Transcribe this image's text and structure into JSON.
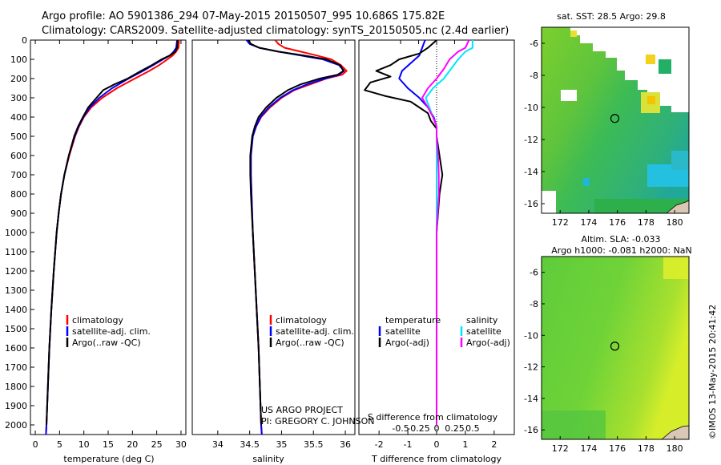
{
  "header": {
    "line1": "Argo profile: AO 5901386_294 07-May-2015 20150507_995 10.686S 175.82E",
    "line2": "Climatology: CARS2009. Satellite-adjusted climatology: synTS_20150505.nc (2.4d earlier)"
  },
  "credits": {
    "project": "US ARGO PROJECT",
    "pi": "PI: GREGORY C. JOHNSON",
    "imos": "©IMOS 13-May-2015 20:41:42"
  },
  "colors": {
    "climatology": "#ff0000",
    "satellite": "#0000ff",
    "argo": "#000000",
    "sat_salinity": "#00e5ff",
    "argo_salinity": "#ff00ff"
  },
  "chart_data": [
    {
      "type": "line",
      "id": "temperature",
      "xlabel": "temperature (deg C)",
      "xlim": [
        -1,
        31
      ],
      "ylim": [
        2050,
        0
      ],
      "xticks": [
        0,
        5,
        10,
        15,
        20,
        25,
        30
      ],
      "yticks": [
        0,
        100,
        200,
        300,
        400,
        500,
        600,
        700,
        800,
        900,
        1000,
        1100,
        1200,
        1300,
        1400,
        1500,
        1600,
        1700,
        1800,
        1900,
        2000
      ],
      "legend": [
        "climatology",
        "satellite-adj. clim.",
        "Argo(..raw -QC)"
      ],
      "series": [
        {
          "name": "climatology",
          "color": "#ff0000",
          "depth": [
            0,
            40,
            60,
            80,
            100,
            130,
            160,
            200,
            250,
            300,
            350,
            400,
            450,
            500,
            600,
            700,
            800,
            900,
            1000,
            1200,
            1400,
            1600,
            1800,
            2000,
            2050
          ],
          "values": [
            29.6,
            29.5,
            29.0,
            28.3,
            27.2,
            25.5,
            23.5,
            20.5,
            16.8,
            13.8,
            11.5,
            10.0,
            9.0,
            8.2,
            7.0,
            6.0,
            5.3,
            4.8,
            4.4,
            3.8,
            3.3,
            2.9,
            2.6,
            2.3,
            2.2
          ]
        },
        {
          "name": "satellite-adj. clim.",
          "color": "#0000ff",
          "depth": [
            0,
            40,
            60,
            80,
            100,
            130,
            160,
            200,
            250,
            300,
            350,
            400,
            450,
            500,
            600,
            700,
            800,
            900,
            1000,
            1200,
            1400,
            1600,
            1800,
            2000,
            2050
          ],
          "values": [
            29.2,
            29.0,
            28.5,
            27.7,
            26.3,
            24.3,
            22.2,
            19.2,
            15.8,
            13.2,
            11.2,
            9.9,
            8.9,
            8.1,
            6.9,
            6.0,
            5.3,
            4.8,
            4.4,
            3.8,
            3.3,
            2.9,
            2.6,
            2.3,
            2.2
          ]
        },
        {
          "name": "Argo(..raw -QC)",
          "color": "#000000",
          "depth": [
            0,
            40,
            60,
            80,
            100,
            130,
            160,
            200,
            230,
            260,
            300,
            350,
            400,
            450,
            500,
            600,
            700,
            800,
            900,
            1000,
            1200,
            1400,
            1600,
            1800,
            2000
          ],
          "values": [
            29.3,
            29.2,
            28.8,
            27.7,
            26.0,
            24.0,
            21.8,
            19.0,
            16.3,
            14.0,
            12.6,
            10.9,
            9.8,
            8.8,
            8.0,
            6.9,
            6.0,
            5.3,
            4.8,
            4.4,
            3.8,
            3.3,
            2.9,
            2.6,
            2.3
          ]
        }
      ]
    },
    {
      "type": "line",
      "id": "salinity",
      "xlabel": "salinity",
      "xlim": [
        33.6,
        36.15
      ],
      "ylim": [
        2050,
        0
      ],
      "xticks": [
        34,
        34.5,
        35,
        35.5,
        36
      ],
      "xticklabels": [
        "34",
        "34.5",
        "35",
        "35.5",
        "36"
      ],
      "legend": [
        "climatology",
        "satellite-adj. clim.",
        "Argo(..raw -QC)"
      ],
      "series": [
        {
          "name": "climatology",
          "color": "#ff0000",
          "depth": [
            0,
            20,
            40,
            60,
            80,
            100,
            130,
            160,
            180,
            200,
            230,
            260,
            300,
            350,
            400,
            450,
            500,
            600,
            700,
            800,
            1000,
            1200,
            1400,
            1600,
            1800,
            2000,
            2050
          ],
          "values": [
            34.9,
            34.95,
            35.05,
            35.3,
            35.55,
            35.78,
            35.93,
            36.02,
            35.95,
            35.7,
            35.45,
            35.2,
            35.0,
            34.82,
            34.68,
            34.6,
            34.55,
            34.52,
            34.52,
            34.53,
            34.55,
            34.58,
            34.61,
            34.64,
            34.66,
            34.68,
            34.69
          ]
        },
        {
          "name": "satellite-adj. clim.",
          "color": "#0000ff",
          "depth": [
            0,
            20,
            40,
            60,
            80,
            100,
            130,
            160,
            180,
            200,
            230,
            260,
            300,
            350,
            400,
            450,
            500,
            600,
            700,
            800,
            1000,
            1200,
            1400,
            1600,
            1800,
            2000,
            2050
          ],
          "values": [
            34.45,
            34.5,
            34.65,
            34.95,
            35.3,
            35.65,
            35.9,
            35.98,
            35.9,
            35.68,
            35.4,
            35.18,
            34.98,
            34.8,
            34.67,
            34.6,
            34.55,
            34.52,
            34.52,
            34.53,
            34.55,
            34.58,
            34.61,
            34.64,
            34.66,
            34.68,
            34.69
          ]
        },
        {
          "name": "Argo(..raw -QC)",
          "color": "#000000",
          "depth": [
            0,
            20,
            40,
            60,
            80,
            100,
            130,
            160,
            180,
            200,
            230,
            260,
            300,
            350,
            400,
            450,
            500,
            600,
            700,
            800,
            1000,
            1200,
            1400,
            1600,
            1800,
            2000
          ],
          "values": [
            34.48,
            34.52,
            34.65,
            34.95,
            35.35,
            35.7,
            35.92,
            35.97,
            35.88,
            35.6,
            35.3,
            35.1,
            34.92,
            34.76,
            34.64,
            34.58,
            34.54,
            34.51,
            34.51,
            34.52,
            34.55,
            34.58,
            34.61,
            34.64,
            34.66,
            34.68
          ]
        }
      ]
    },
    {
      "type": "line",
      "id": "difference",
      "xlabel_bottom": "T difference from climatology",
      "xlabel_top": "S difference from climatology",
      "xlim": [
        -2.7,
        2.7
      ],
      "ylim": [
        2050,
        0
      ],
      "xticks": [
        -2,
        -1,
        0,
        1,
        2
      ],
      "xticks_top": [
        -0.5,
        -0.25,
        0,
        0.25,
        0.5
      ],
      "xticklabels_top": [
        "-0.5",
        "-0.25",
        "0",
        "0.25",
        "0.5"
      ],
      "legend_temperature": [
        "temperature",
        "satellite",
        "Argo(-adj)"
      ],
      "legend_salinity": [
        "salinity",
        "satellite",
        "Argo(-adj)"
      ],
      "series": [
        {
          "name": "temperature satellite",
          "color": "#0000ff",
          "depth": [
            0,
            40,
            80,
            120,
            160,
            200,
            250,
            300,
            350,
            400,
            450,
            500,
            600,
            800,
            1000,
            1500,
            2000
          ],
          "values": [
            -0.4,
            -0.5,
            -0.6,
            -0.9,
            -1.2,
            -1.3,
            -1.0,
            -0.6,
            -0.3,
            -0.1,
            0.0,
            0.0,
            0.0,
            0.0,
            0.0,
            0.0,
            0.0
          ]
        },
        {
          "name": "temperature Argo(-adj)",
          "color": "#000000",
          "depth": [
            0,
            40,
            70,
            100,
            130,
            160,
            190,
            220,
            260,
            290,
            320,
            350,
            380,
            420,
            460,
            500,
            600,
            700,
            800,
            1000,
            1500,
            2000
          ],
          "values": [
            0.0,
            -0.3,
            -0.6,
            -1.3,
            -1.6,
            -2.1,
            -1.6,
            -2.3,
            -2.5,
            -1.8,
            -0.9,
            -0.6,
            -0.3,
            -0.2,
            0.0,
            0.0,
            0.1,
            0.2,
            0.1,
            0.0,
            0.0,
            0.0
          ]
        },
        {
          "name": "salinity satellite",
          "color": "#00e5ff",
          "depth": [
            0,
            40,
            60,
            100,
            150,
            200,
            250,
            300,
            350,
            400,
            450,
            500,
            600,
            800,
            1000,
            1500,
            2000
          ],
          "values": [
            0.5,
            0.5,
            0.4,
            0.3,
            0.2,
            0.1,
            -0.05,
            -0.15,
            -0.1,
            -0.05,
            0.0,
            0.0,
            0.0,
            0.0,
            0.0,
            0.0,
            0.0
          ]
        },
        {
          "name": "salinity Argo(-adj)",
          "color": "#ff00ff",
          "depth": [
            0,
            40,
            60,
            100,
            150,
            200,
            250,
            300,
            350,
            400,
            450,
            500,
            600,
            700,
            800,
            1000,
            1500,
            2000
          ],
          "values": [
            0.45,
            0.4,
            0.3,
            0.18,
            0.1,
            0.0,
            -0.12,
            -0.2,
            -0.12,
            -0.05,
            0.0,
            0.0,
            0.02,
            0.03,
            0.03,
            0.0,
            0.0,
            0.0
          ]
        }
      ]
    },
    {
      "type": "heatmap",
      "id": "sst-map",
      "title": "sat. SST: 28.5  Argo: 29.8",
      "xlim": [
        170.7,
        181.0
      ],
      "ylim": [
        -16.6,
        -5.0
      ],
      "xticks": [
        172,
        174,
        176,
        178,
        180
      ],
      "yticks": [
        -6,
        -8,
        -10,
        -12,
        -14,
        -16
      ],
      "marker": {
        "lon": 175.82,
        "lat": -10.686
      }
    },
    {
      "type": "heatmap",
      "id": "sla-map",
      "title_line1": "Altim. SLA: -0.033",
      "title_line2": "Argo h1000: -0.081  h2000: NaN",
      "xlim": [
        170.7,
        181.0
      ],
      "ylim": [
        -16.6,
        -5.0
      ],
      "xticks": [
        172,
        174,
        176,
        178,
        180
      ],
      "yticks": [
        -6,
        -8,
        -10,
        -12,
        -14,
        -16
      ],
      "marker": {
        "lon": 175.82,
        "lat": -10.686
      }
    }
  ]
}
